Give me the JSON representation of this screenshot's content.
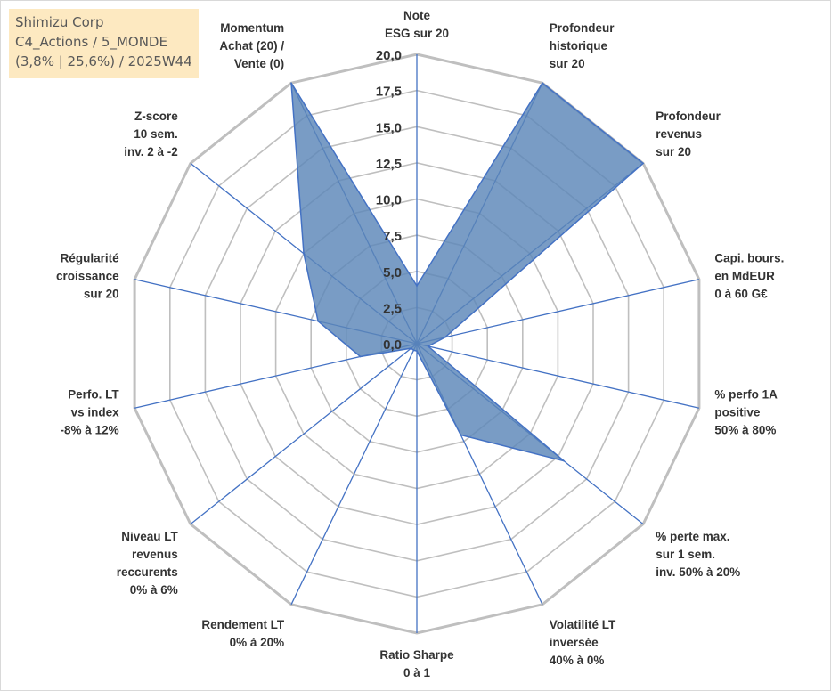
{
  "info": {
    "line1": "Shimizu Corp",
    "line2": "C4_Actions / 5_MONDE",
    "line3": "(3,8% | 25,6%) / 2025W44"
  },
  "colors": {
    "fill": "#5b86b8",
    "stroke": "#4472c4",
    "grid": "#bfbfbf",
    "spoke": "#4472c4",
    "info_bg": "#fde9c1"
  },
  "chart_data": {
    "type": "radar",
    "title": "",
    "rmin": 0,
    "rmax": 20,
    "ticks": [
      "0,0",
      "2,5",
      "5,0",
      "7,5",
      "10,0",
      "12,5",
      "15,0",
      "17,5",
      "20,0"
    ],
    "axes": [
      {
        "label": [
          "Note",
          "ESG sur 20"
        ],
        "value": 4.0
      },
      {
        "label": [
          "Profondeur",
          "historique",
          "sur 20"
        ],
        "value": 20.0
      },
      {
        "label": [
          "Profondeur",
          "revenus",
          "sur 20"
        ],
        "value": 20.0
      },
      {
        "label": [
          "Capi. bours.",
          "en MdEUR",
          "0 à 60 G€"
        ],
        "value": 2.0
      },
      {
        "label": [
          "% perfo 1A",
          "positive",
          "50% à 80%"
        ],
        "value": 0.8
      },
      {
        "label": [
          "% perte max.",
          "sur 1 sem.",
          "inv. 50% à 20%"
        ],
        "value": 13.0
      },
      {
        "label": [
          "Volatilité LT",
          "inversée",
          "40% à 0%"
        ],
        "value": 7.0
      },
      {
        "label": [
          "Ratio Sharpe",
          "0 à 1"
        ],
        "value": 0.5
      },
      {
        "label": [
          "Rendement LT",
          "0% à 20%"
        ],
        "value": 0.5
      },
      {
        "label": [
          "Niveau LT",
          "revenus",
          "reccurents",
          "0% à 6%"
        ],
        "value": 0.5
      },
      {
        "label": [
          "Perfo. LT",
          "vs index",
          "-8% à 12%"
        ],
        "value": 4.0
      },
      {
        "label": [
          "Régularité",
          "croissance",
          "sur 20"
        ],
        "value": 7.0
      },
      {
        "label": [
          "Z-score",
          "10 sem.",
          "inv. 2 à -2"
        ],
        "value": 10.0
      },
      {
        "label": [
          "Momentum",
          "Achat (20) /",
          "Vente (0)"
        ],
        "value": 20.0
      }
    ]
  }
}
